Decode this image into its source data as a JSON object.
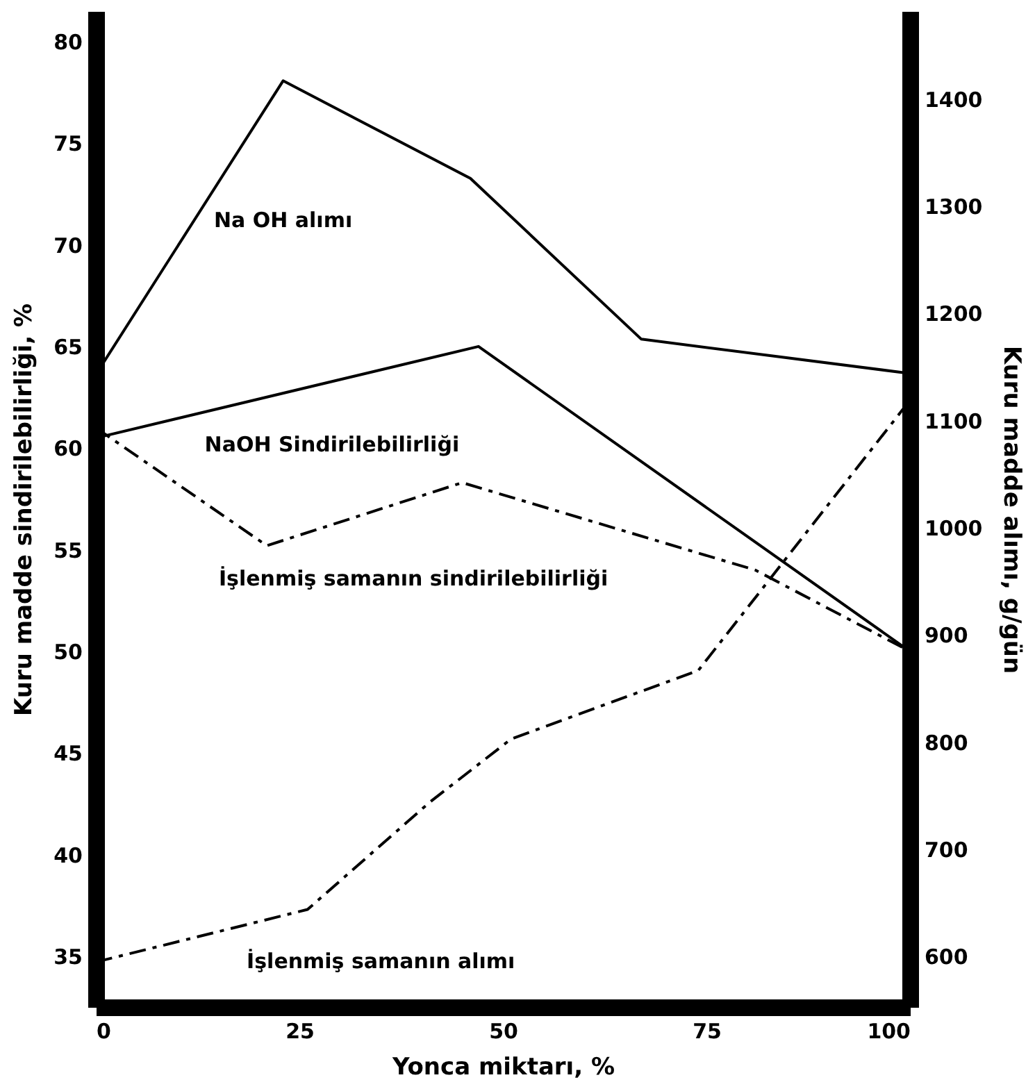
{
  "chart_data": {
    "type": "line",
    "xlabel": "Yonca miktarı, %",
    "ylabel": "Kuru madde sindirilebilirliği, %",
    "y2label": "Kuru madde alımı, g/gün",
    "xlim": [
      0,
      100
    ],
    "xticks": [
      0,
      25,
      50,
      75,
      100
    ],
    "ylim": [
      32.5,
      81.5
    ],
    "yticks": [
      35,
      40,
      45,
      50,
      55,
      60,
      65,
      70,
      75,
      80
    ],
    "y2lim": [
      553,
      1482
    ],
    "y2ticks": [
      600,
      700,
      800,
      900,
      1000,
      1100,
      1200,
      1300,
      1400
    ],
    "grid": false,
    "legend": false,
    "marker": "none",
    "series": [
      {
        "name": "NaOH Sindirilebilirliği",
        "color": "#000000",
        "line_style": "solid",
        "x": [
          0,
          47,
          100
        ],
        "values": [
          60.5,
          65,
          50
        ]
      },
      {
        "name": "İşlenmiş samanın sindirilebilirliği",
        "color": "#000000",
        "line_style": "dashed",
        "x": [
          0,
          21,
          45,
          81,
          100
        ],
        "values": [
          61,
          55.2,
          58.3,
          54,
          50
        ]
      },
      {
        "name": "Na OH alımı",
        "color": "#000000",
        "line_style": "solid",
        "axis": "y2",
        "x": [
          0,
          23,
          46,
          67,
          100
        ],
        "values": [
          1143,
          1417,
          1326,
          1176,
          1144
        ]
      },
      {
        "name": "İşlenmiş samanın alımı",
        "color": "#000000",
        "line_style": "dashed",
        "axis": "y2",
        "x": [
          0,
          26,
          41,
          51,
          74,
          100
        ],
        "values": [
          595,
          644,
          744,
          803,
          867,
          1119
        ]
      }
    ]
  }
}
